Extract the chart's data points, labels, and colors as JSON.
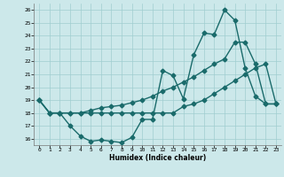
{
  "xlabel": "Humidex (Indice chaleur)",
  "xlim": [
    -0.5,
    23.5
  ],
  "ylim": [
    15.5,
    26.5
  ],
  "xticks": [
    0,
    1,
    2,
    3,
    4,
    5,
    6,
    7,
    8,
    9,
    10,
    11,
    12,
    13,
    14,
    15,
    16,
    17,
    18,
    19,
    20,
    21,
    22,
    23
  ],
  "yticks": [
    16,
    17,
    18,
    19,
    20,
    21,
    22,
    23,
    24,
    25,
    26
  ],
  "bg_color": "#cce8ea",
  "grid_color": "#a0cdd0",
  "line_color": "#1a6b6b",
  "line1_y": [
    19,
    18,
    18,
    17,
    16.2,
    15.8,
    15.9,
    15.8,
    15.7,
    16.1,
    17.5,
    17.5,
    21.3,
    20.9,
    19.1,
    22.5,
    24.2,
    24.1,
    26.0,
    25.2,
    21.5,
    19.3,
    18.7,
    18.7
  ],
  "line2_y": [
    19,
    18,
    18,
    18,
    18,
    18,
    18,
    18,
    18,
    18,
    18,
    18,
    18,
    18,
    18.5,
    18.7,
    19.0,
    19.5,
    20.0,
    20.5,
    21.0,
    21.5,
    21.8,
    18.7
  ],
  "line3_y": [
    19,
    18,
    18,
    18,
    18,
    18.2,
    18.4,
    18.5,
    18.6,
    18.8,
    19.0,
    19.3,
    19.7,
    20.0,
    20.4,
    20.8,
    21.3,
    21.8,
    22.2,
    23.5,
    23.5,
    21.8,
    18.7,
    18.7
  ],
  "marker": "D",
  "marker_size": 2.5,
  "line_width": 1.0
}
